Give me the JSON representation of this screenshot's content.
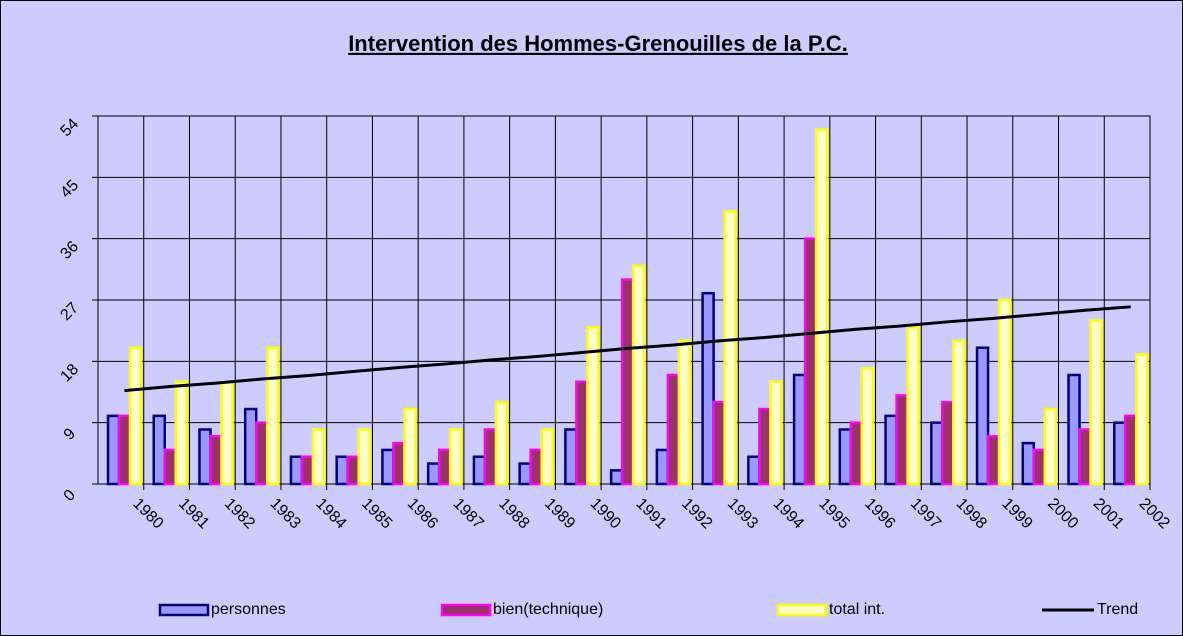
{
  "chart_data": {
    "type": "bar",
    "title": "Intervention des Hommes-Grenouilles de la P.C.",
    "categories": [
      "1980",
      "1981",
      "1982",
      "1983",
      "1984",
      "1985",
      "1986",
      "1987",
      "1988",
      "1989",
      "1990",
      "1991",
      "1992",
      "1993",
      "1994",
      "1995",
      "1996",
      "1997",
      "1998",
      "1999",
      "2000",
      "2001",
      "2002"
    ],
    "series": [
      {
        "name": "personnes",
        "color": "#9999ff",
        "edge": "#000080",
        "values": [
          10,
          10,
          8,
          11,
          4,
          4,
          5,
          3,
          4,
          3,
          8,
          2,
          5,
          28,
          4,
          16,
          8,
          10,
          9,
          20,
          6,
          16,
          9
        ]
      },
      {
        "name": "bien(technique)",
        "color": "#993366",
        "edge": "#ff00ff",
        "values": [
          10,
          5,
          7,
          9,
          4,
          4,
          6,
          5,
          8,
          5,
          15,
          30,
          16,
          12,
          11,
          36,
          9,
          13,
          12,
          7,
          5,
          8,
          10
        ]
      },
      {
        "name": "total int.",
        "color": "#ffffcc",
        "edge": "#ffff00",
        "values": [
          20,
          15,
          15,
          20,
          8,
          8,
          11,
          8,
          12,
          8,
          23,
          32,
          21,
          40,
          15,
          52,
          17,
          23,
          21,
          27,
          11,
          24,
          19
        ]
      },
      {
        "name": "Trend",
        "type": "line",
        "color": "#000000",
        "values": [
          13.7,
          14.3,
          14.8,
          15.4,
          15.9,
          16.5,
          17.1,
          17.6,
          18.2,
          18.7,
          19.3,
          19.9,
          20.4,
          21.0,
          21.5,
          22.1,
          22.7,
          23.2,
          23.8,
          24.3,
          24.9,
          25.5,
          26.0
        ]
      }
    ],
    "ylim": [
      0,
      54
    ],
    "yticks": [
      0,
      9,
      18,
      27,
      36,
      45,
      54
    ],
    "grid": true,
    "legend": "bottom"
  }
}
